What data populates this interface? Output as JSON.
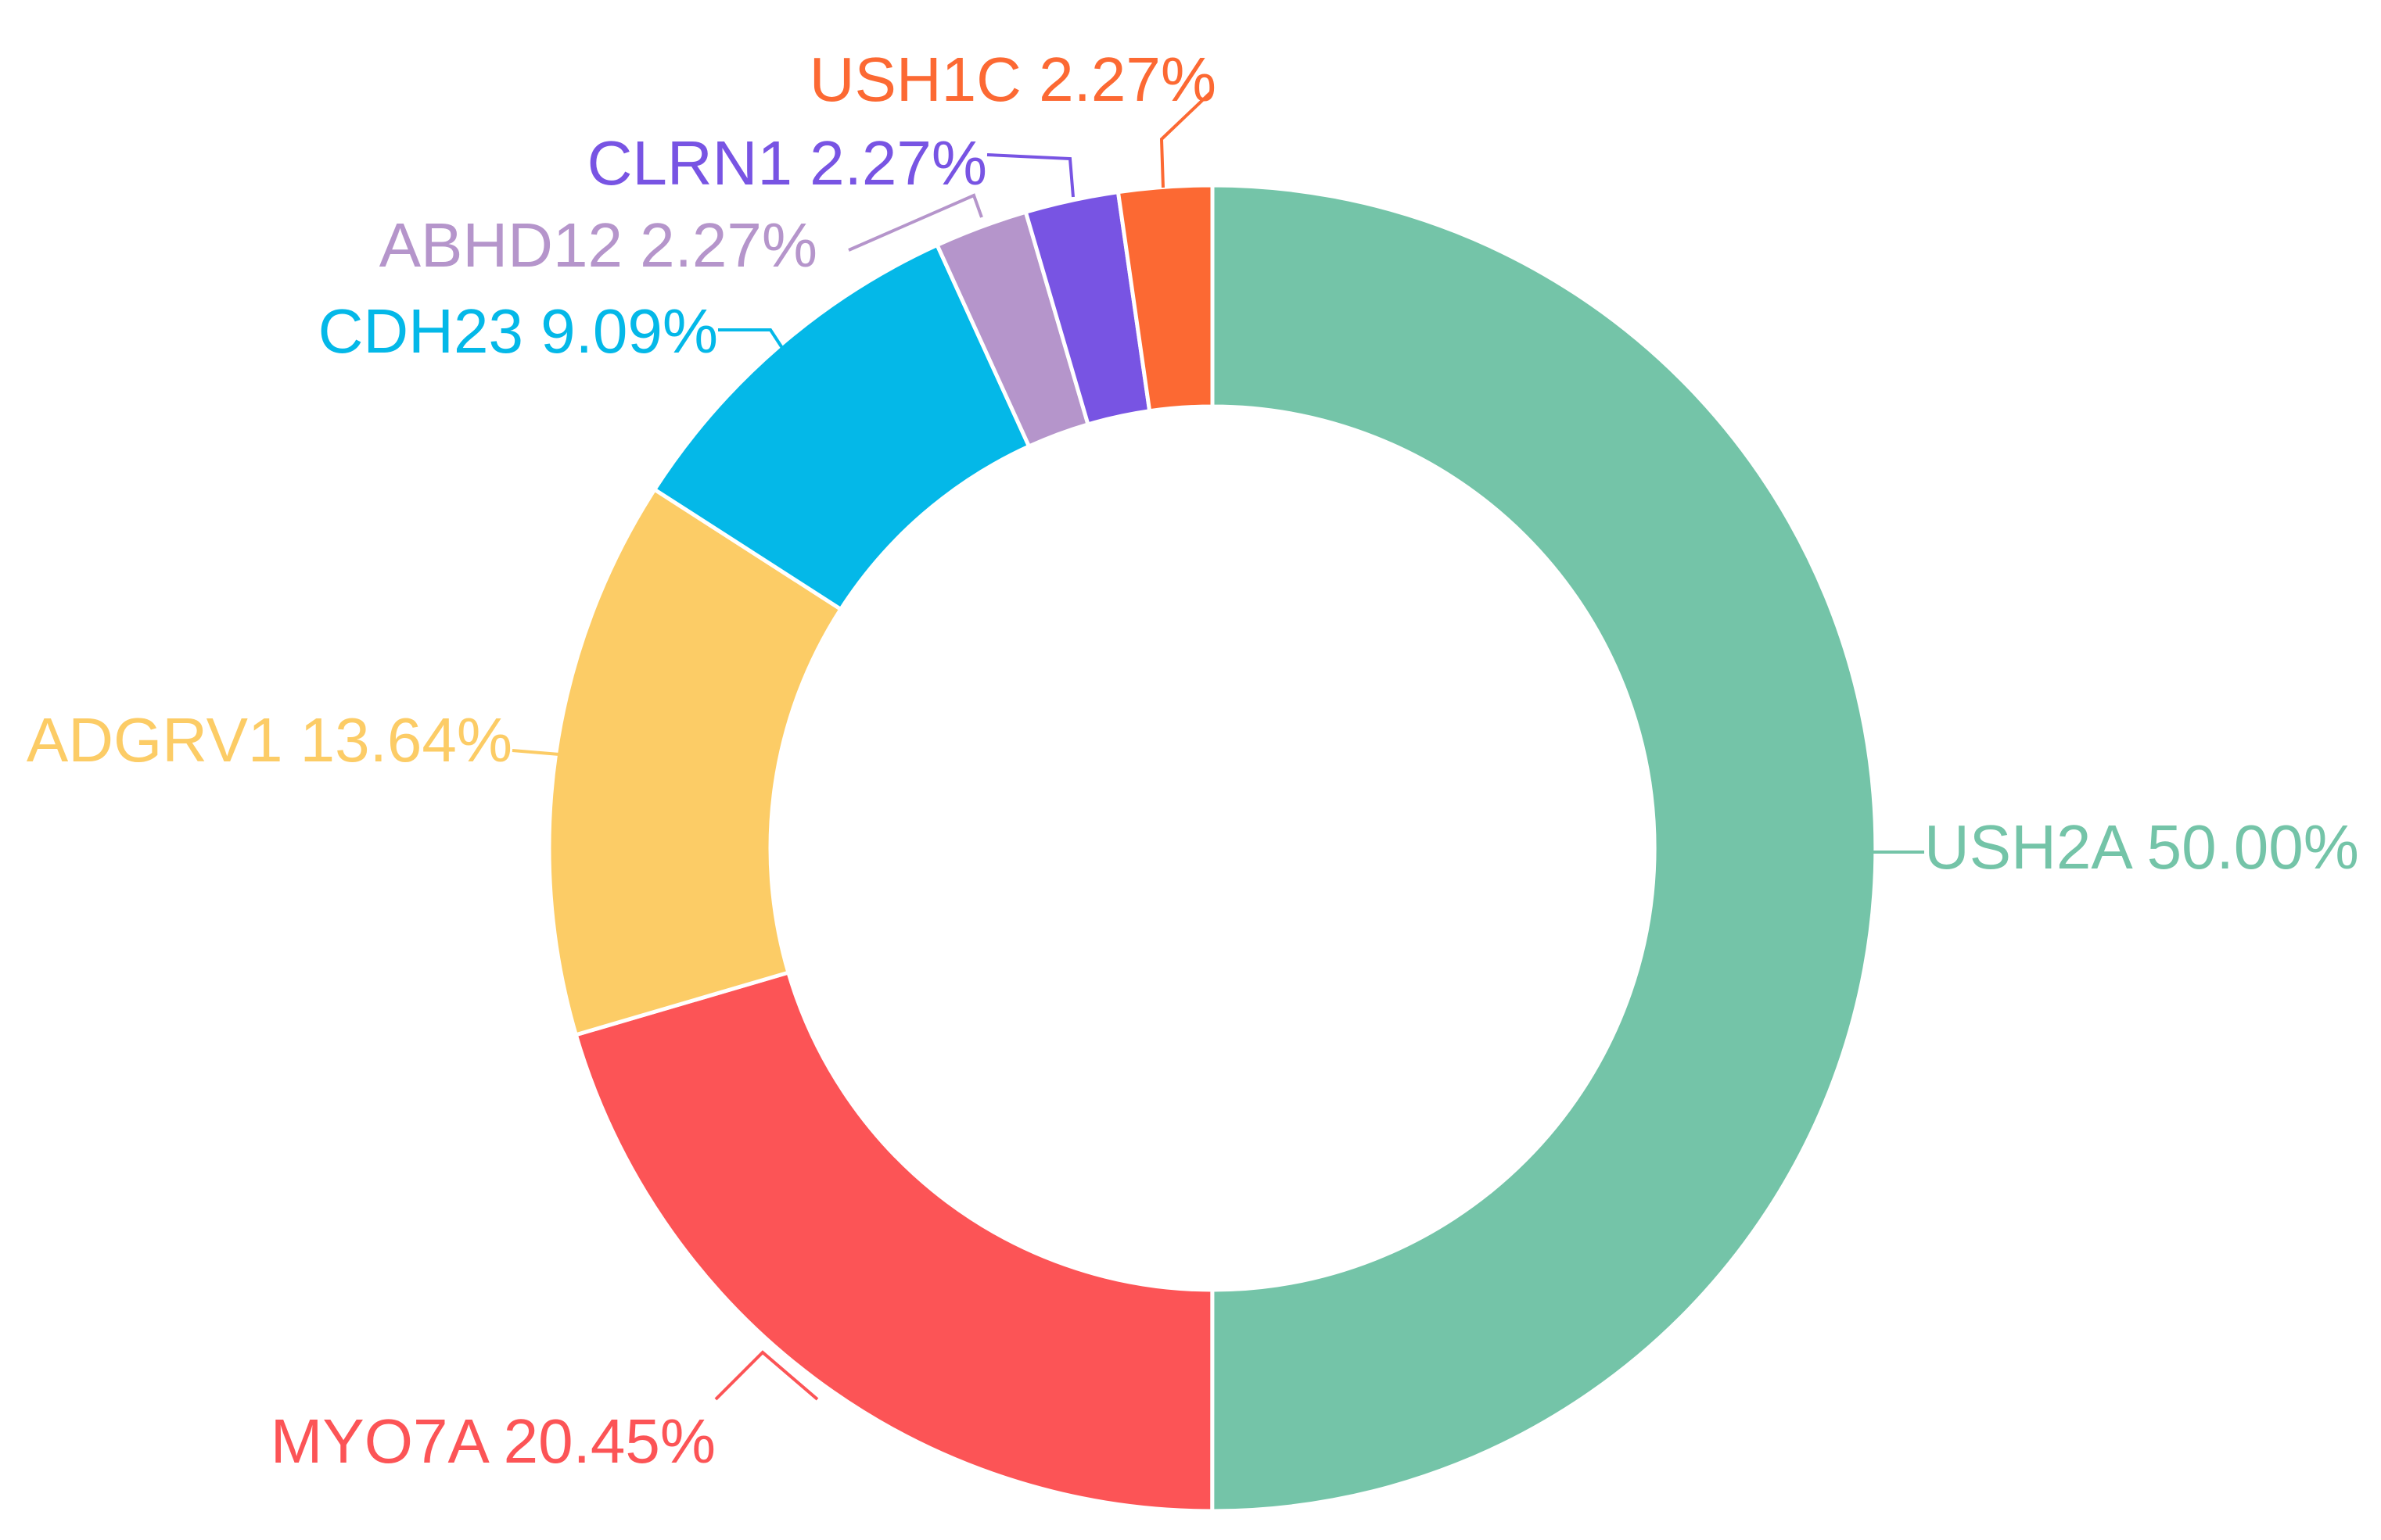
{
  "chart_data": {
    "type": "pie",
    "variant": "donut",
    "title": "",
    "legend": "none",
    "slices": [
      {
        "name": "USH2A",
        "value": 50.0,
        "label": "USH2A 50.00%",
        "color": "#74C4A8"
      },
      {
        "name": "MYO7A",
        "value": 20.45,
        "label": "MYO7A 20.45%",
        "color": "#FC5456"
      },
      {
        "name": "ADGRV1",
        "value": 13.64,
        "label": "ADGRV1 13.64%",
        "color": "#FCCC66"
      },
      {
        "name": "CDH23",
        "value": 9.09,
        "label": "CDH23 9.09%",
        "color": "#04B8E8"
      },
      {
        "name": "ABHD12",
        "value": 2.27,
        "label": "ABHD12 2.27%",
        "color": "#B595CB"
      },
      {
        "name": "CLRN1",
        "value": 2.27,
        "label": "CLRN1 2.27%",
        "color": "#7854E3"
      },
      {
        "name": "USH1C",
        "value": 2.27,
        "label": "USH1C 2.27%",
        "color": "#FC6933"
      }
    ]
  }
}
